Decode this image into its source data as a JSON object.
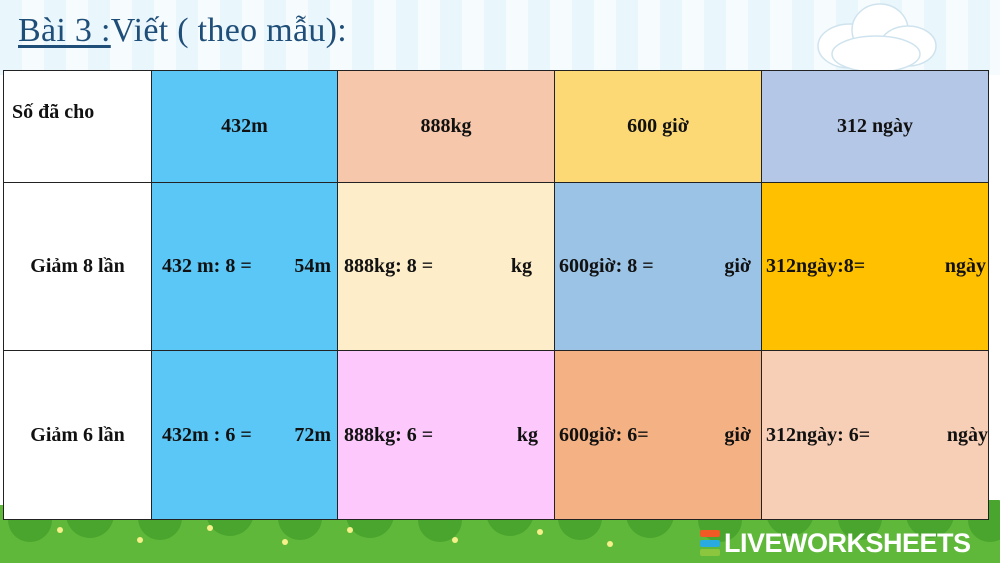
{
  "title": {
    "underlined": "Bài 3 :",
    "rest": "Viết ( theo mẫu):"
  },
  "table": {
    "header_label": "Số đã cho",
    "headers": [
      "432m",
      "888kg",
      "600 giờ",
      "312 ngày"
    ],
    "rows": [
      {
        "label": "Giảm 8 lần",
        "cells": [
          {
            "expr": "432 m: 8 =",
            "unit": "54m"
          },
          {
            "expr": "888kg: 8 =",
            "unit": "kg"
          },
          {
            "expr": "600giờ: 8 =",
            "unit": "giờ"
          },
          {
            "expr": "312ngày:8=",
            "unit": "ngày"
          }
        ]
      },
      {
        "label": "Giảm 6 lần",
        "cells": [
          {
            "expr": "432m : 6 =",
            "unit": "72m"
          },
          {
            "expr": "888kg: 6 =",
            "unit": "kg"
          },
          {
            "expr": "600giờ: 6=",
            "unit": "giờ"
          },
          {
            "expr": "312ngày: 6=",
            "unit": "ngày"
          }
        ]
      }
    ]
  },
  "brand": {
    "name": "LIVEWORKSHEETS",
    "badge_colors": [
      "#f15a24",
      "#29abe2",
      "#8cc63f"
    ]
  }
}
